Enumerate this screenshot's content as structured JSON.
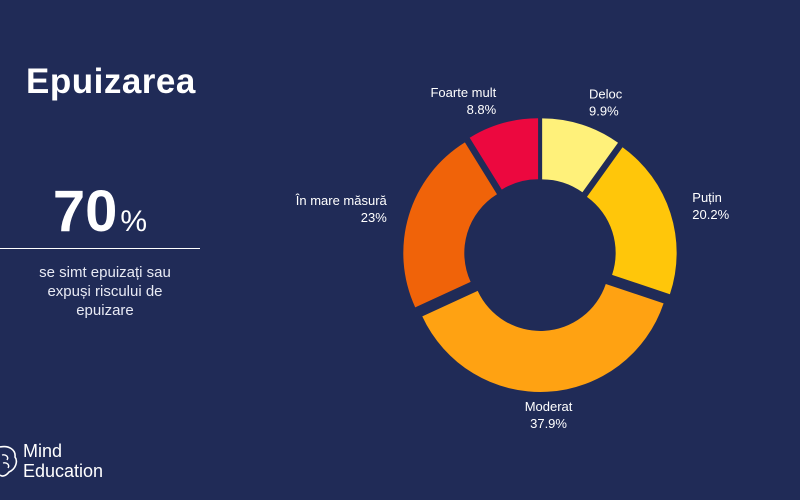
{
  "title": "Epuizarea",
  "stat": {
    "value": "70",
    "unit": "%",
    "caption": "se simt epuizați sau expuși riscului de epuizare"
  },
  "logo": {
    "line1": "Mind",
    "line2": "Education",
    "icon": "brain-icon"
  },
  "colors": {
    "background": "#202b57"
  },
  "chart_data": {
    "type": "pie",
    "donut": true,
    "categories": [
      "Deloc",
      "Puțin",
      "Moderat",
      "În mare măsură",
      "Foarte mult"
    ],
    "values": [
      9.9,
      20.2,
      37.9,
      23,
      8.8
    ],
    "value_labels": [
      "9.9%",
      "20.2%",
      "37.9%",
      "23%",
      "8.8%"
    ],
    "colors": [
      "#fff17a",
      "#ffc60a",
      "#ffa212",
      "#f06309",
      "#ec083f"
    ],
    "title": "",
    "legend": "labels-outside"
  }
}
